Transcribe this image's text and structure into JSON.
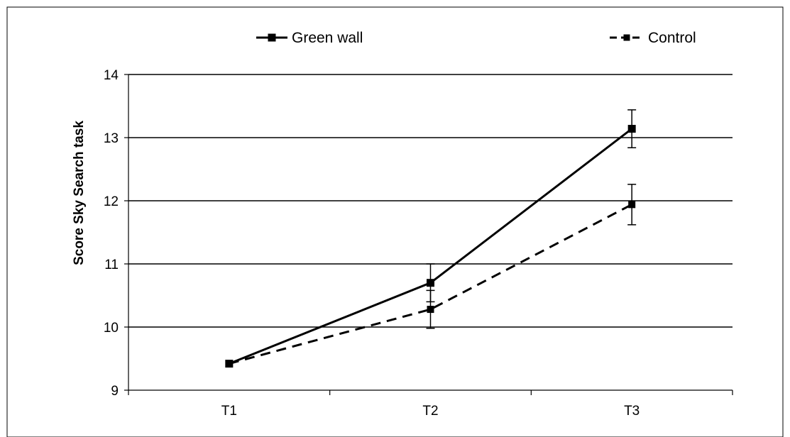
{
  "chart_data": {
    "type": "line",
    "categories": [
      "T1",
      "T2",
      "T3"
    ],
    "series": [
      {
        "name": "Green wall",
        "values": [
          9.42,
          10.7,
          13.14
        ],
        "error": [
          0,
          0.3,
          0.3
        ],
        "line_style": "solid",
        "color": "#000000"
      },
      {
        "name": "Control",
        "values": [
          9.42,
          10.28,
          11.94
        ],
        "error": [
          0,
          0.3,
          0.32
        ],
        "line_style": "dashed",
        "color": "#000000"
      }
    ],
    "title": "",
    "xlabel": "",
    "ylabel": "Score Sky Search task",
    "ylim": [
      9,
      14
    ],
    "yticks": [
      9,
      10,
      11,
      12,
      13,
      14
    ],
    "grid": true,
    "legend": "top"
  }
}
